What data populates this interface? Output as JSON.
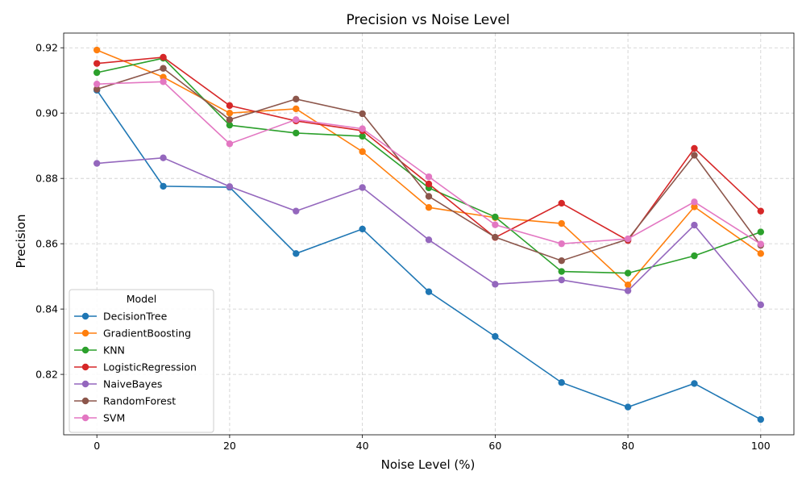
{
  "chart_data": {
    "type": "line",
    "title": "Precision vs Noise Level",
    "xlabel": "Noise Level (%)",
    "ylabel": "Precision",
    "x": [
      0,
      10,
      20,
      30,
      40,
      50,
      60,
      70,
      80,
      90,
      100
    ],
    "xlim": [
      -5,
      105
    ],
    "ylim": [
      0.8015,
      0.9245
    ],
    "xticks": [
      0,
      20,
      40,
      60,
      80,
      100
    ],
    "yticks": [
      0.82,
      0.84,
      0.86,
      0.88,
      0.9,
      0.92
    ],
    "ytick_labels": [
      "0.82",
      "0.84",
      "0.86",
      "0.88",
      "0.90",
      "0.92"
    ],
    "grid": true,
    "legend": {
      "title": "Model",
      "placement": "lower-left"
    },
    "series": [
      {
        "name": "DecisionTree",
        "color": "#1f77b4",
        "values": [
          0.907,
          0.8776,
          0.8773,
          0.857,
          0.8645,
          0.8453,
          0.8316,
          0.8175,
          0.81,
          0.8172,
          0.8062
        ]
      },
      {
        "name": "GradientBoosting",
        "color": "#ff7f0e",
        "values": [
          0.9193,
          0.911,
          0.9,
          0.9013,
          0.8882,
          0.8711,
          0.868,
          0.8662,
          0.8474,
          0.8713,
          0.857
        ]
      },
      {
        "name": "KNN",
        "color": "#2ca02c",
        "values": [
          0.9124,
          0.9168,
          0.8963,
          0.8939,
          0.8929,
          0.8771,
          0.8682,
          0.8515,
          0.851,
          0.8563,
          0.8636
        ]
      },
      {
        "name": "LogisticRegression",
        "color": "#d62728",
        "values": [
          0.9152,
          0.9171,
          0.9023,
          0.8976,
          0.8946,
          0.8783,
          0.8619,
          0.8724,
          0.861,
          0.8892,
          0.87
        ]
      },
      {
        "name": "NaiveBayes",
        "color": "#9467bd",
        "values": [
          0.8846,
          0.8863,
          0.8775,
          0.87,
          0.8772,
          0.8612,
          0.8476,
          0.8489,
          0.8456,
          0.8657,
          0.8413
        ]
      },
      {
        "name": "RandomForest",
        "color": "#8c564b",
        "values": [
          0.9073,
          0.9137,
          0.898,
          0.9043,
          0.8998,
          0.8745,
          0.862,
          0.8548,
          0.8614,
          0.8871,
          0.8595
        ]
      },
      {
        "name": "SVM",
        "color": "#e377c2",
        "values": [
          0.9089,
          0.9096,
          0.8906,
          0.898,
          0.8952,
          0.8805,
          0.8658,
          0.86,
          0.8615,
          0.8728,
          0.8599
        ]
      }
    ]
  }
}
